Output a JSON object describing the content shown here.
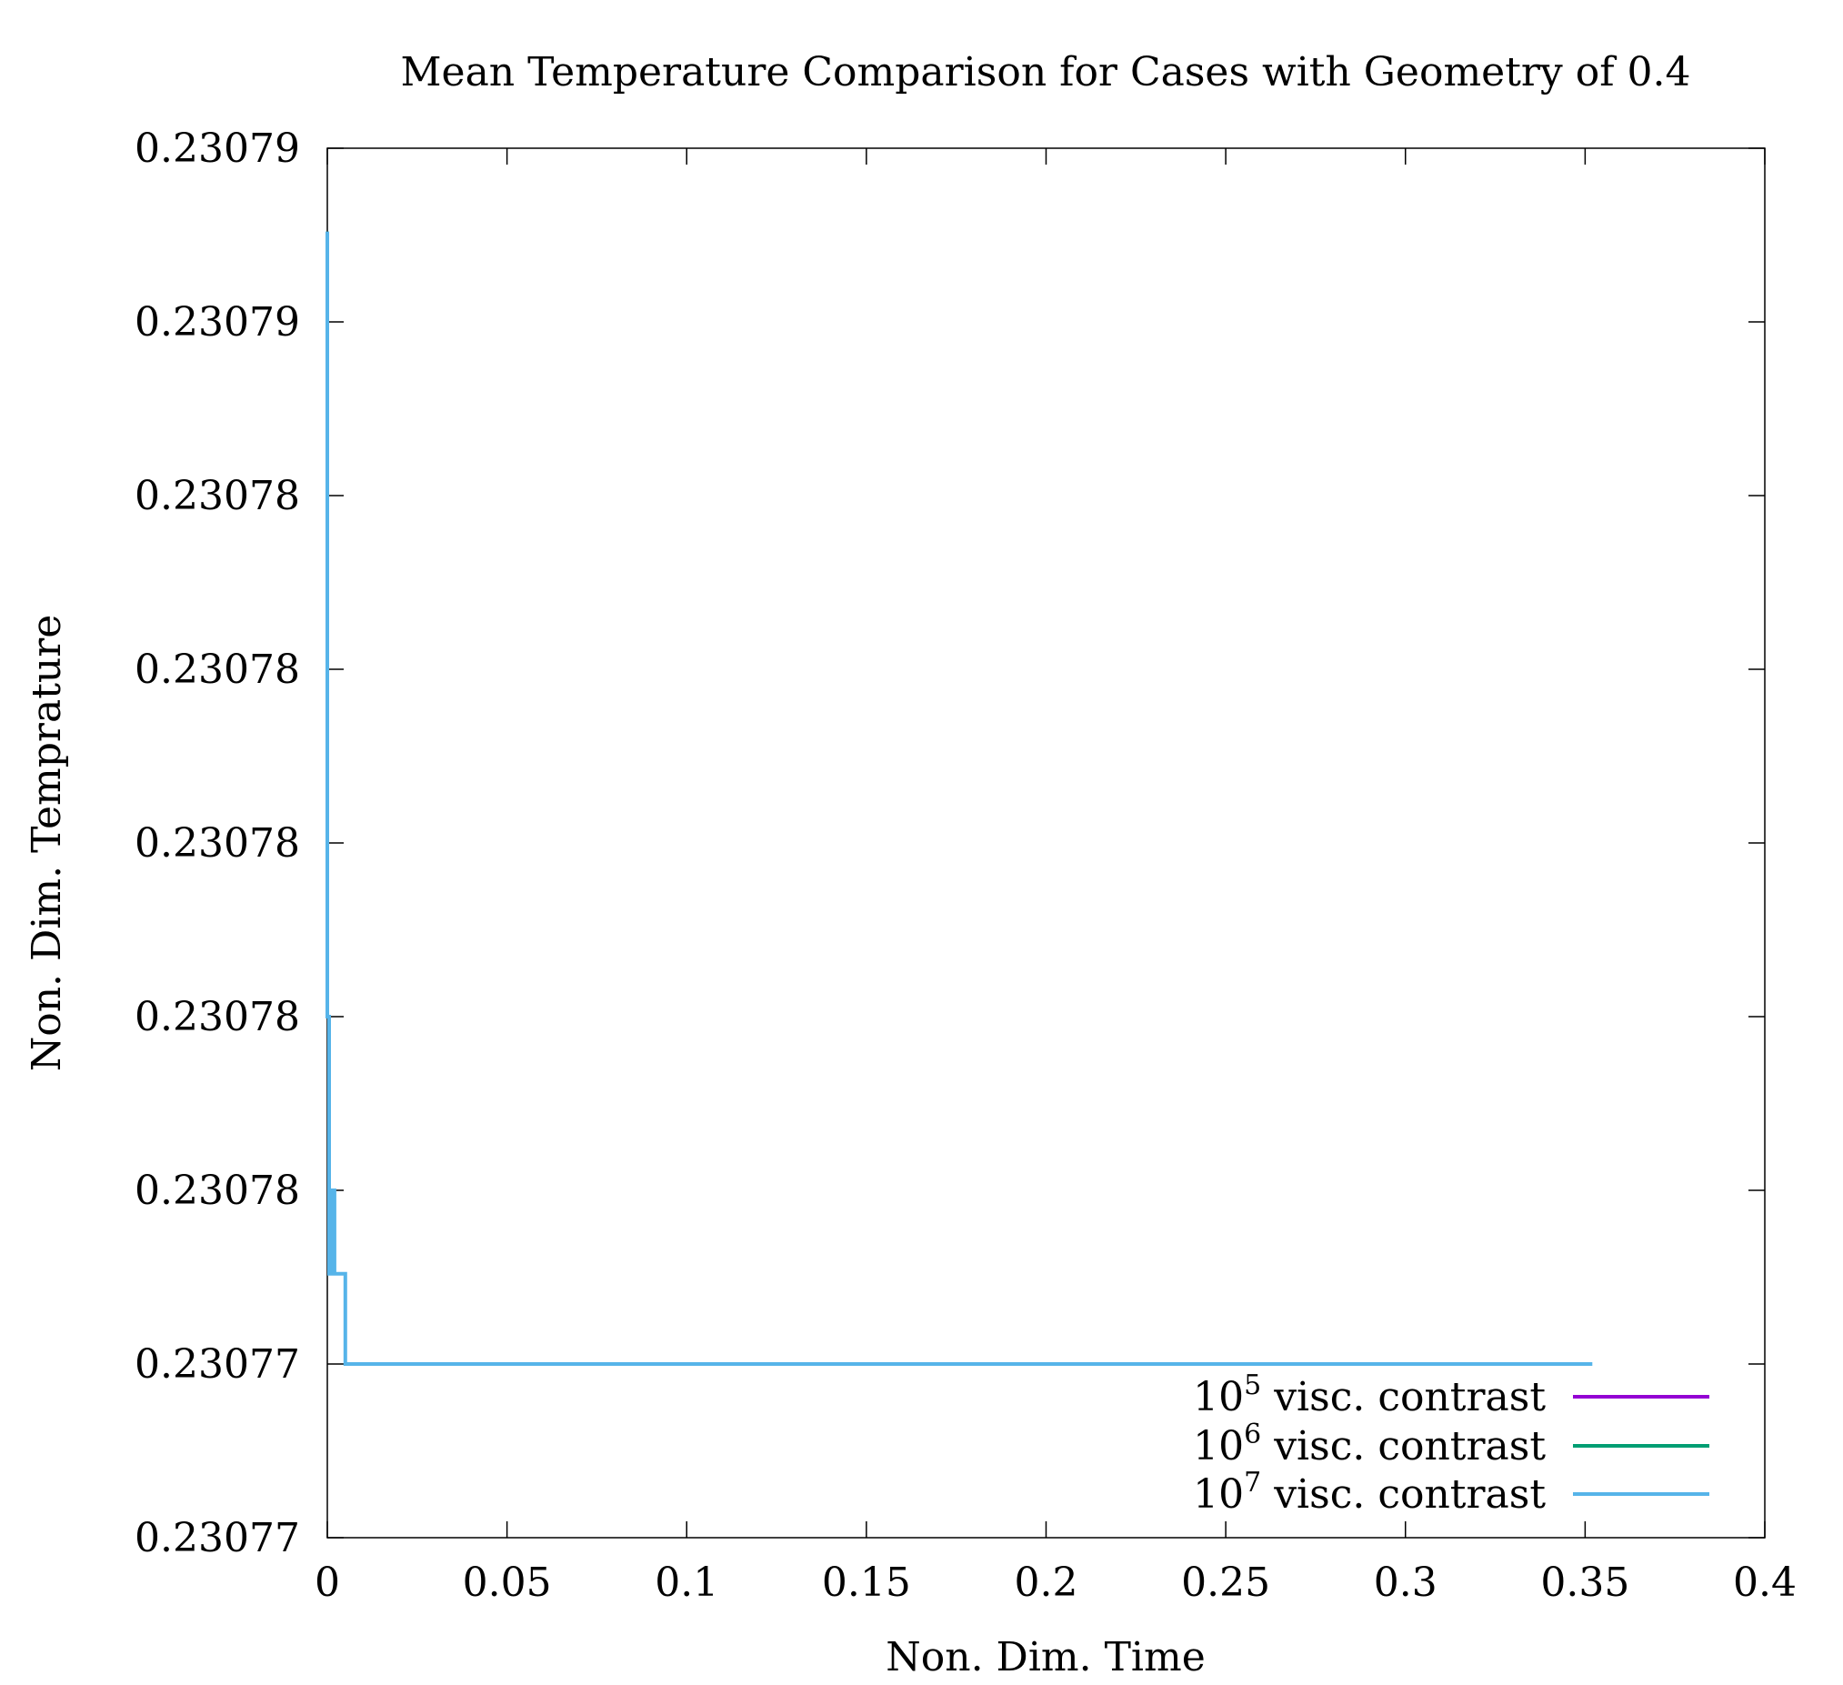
{
  "chart_data": {
    "type": "line",
    "title": "Mean Temperature Comparison for Cases with Geometry of 0.4",
    "xlabel": "Non. Dim. Time",
    "ylabel": "Non. Dim. Temprature",
    "xlim": [
      0,
      0.4
    ],
    "ylim": [
      0.23077,
      0.23079
    ],
    "x_ticks": [
      {
        "value": 0,
        "label": "0"
      },
      {
        "value": 0.05,
        "label": "0.05"
      },
      {
        "value": 0.1,
        "label": "0.1"
      },
      {
        "value": 0.15,
        "label": "0.15"
      },
      {
        "value": 0.2,
        "label": "0.2"
      },
      {
        "value": 0.25,
        "label": "0.25"
      },
      {
        "value": 0.3,
        "label": "0.3"
      },
      {
        "value": 0.35,
        "label": "0.35"
      },
      {
        "value": 0.4,
        "label": "0.4"
      }
    ],
    "y_ticks": [
      {
        "value": 0.23077,
        "label": "0.23077"
      },
      {
        "value": 0.2307725,
        "label": "0.23077"
      },
      {
        "value": 0.230775,
        "label": "0.23078"
      },
      {
        "value": 0.2307775,
        "label": "0.23078"
      },
      {
        "value": 0.23078,
        "label": "0.23078"
      },
      {
        "value": 0.2307825,
        "label": "0.23078"
      },
      {
        "value": 0.230785,
        "label": "0.23078"
      },
      {
        "value": 0.2307875,
        "label": "0.23079"
      },
      {
        "value": 0.23079,
        "label": "0.23079"
      }
    ],
    "grid": false,
    "legend_position": "bottom-right",
    "series": [
      {
        "name_base": "10",
        "name_sup": "5",
        "name_rest": " visc. contrast",
        "color": "#9400d3",
        "x": [
          0,
          0
        ],
        "y": [
          0.2307888,
          0.2307888
        ]
      },
      {
        "name_base": "10",
        "name_sup": "6",
        "name_rest": " visc. contrast",
        "color": "#009e73",
        "x": [
          0,
          0,
          0.0003
        ],
        "y": [
          0.2307888,
          0.230779,
          0.230779
        ]
      },
      {
        "name_base": "10",
        "name_sup": "7",
        "name_rest": " visc. contrast",
        "color": "#56b4e9",
        "x": [
          0,
          0,
          0.0005,
          0.0005,
          0.0012,
          0.0012,
          0.002,
          0.002,
          0.005,
          0.005,
          0.352
        ],
        "y": [
          0.2307888,
          0.2307775,
          0.2307775,
          0.2307738,
          0.2307738,
          0.230775,
          0.230775,
          0.2307738,
          0.2307738,
          0.2307725,
          0.2307725
        ]
      }
    ]
  }
}
